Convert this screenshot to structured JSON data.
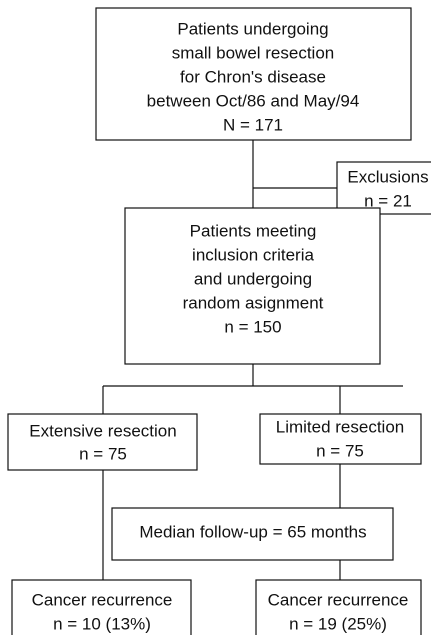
{
  "nodes": [
    {
      "lines": [
        "Patients undergoing",
        "small bowel resection",
        "for Chron's disease",
        "between Oct/86 and May/94",
        "N = 171"
      ]
    },
    {
      "lines": [
        "Exclusions",
        "n = 21"
      ]
    },
    {
      "lines": [
        "Patients meeting",
        "inclusion criteria",
        "and undergoing",
        "random asignment",
        "n = 150"
      ]
    },
    {
      "lines": [
        "Extensive resection",
        "n = 75"
      ]
    },
    {
      "lines": [
        "Limited resection",
        "n = 75"
      ]
    },
    {
      "lines": [
        "Median follow-up = 65 months"
      ]
    },
    {
      "lines": [
        "Cancer recurrence",
        "n = 10 (13%)"
      ]
    },
    {
      "lines": [
        "Cancer recurrence",
        "n = 19 (25%)"
      ]
    }
  ]
}
